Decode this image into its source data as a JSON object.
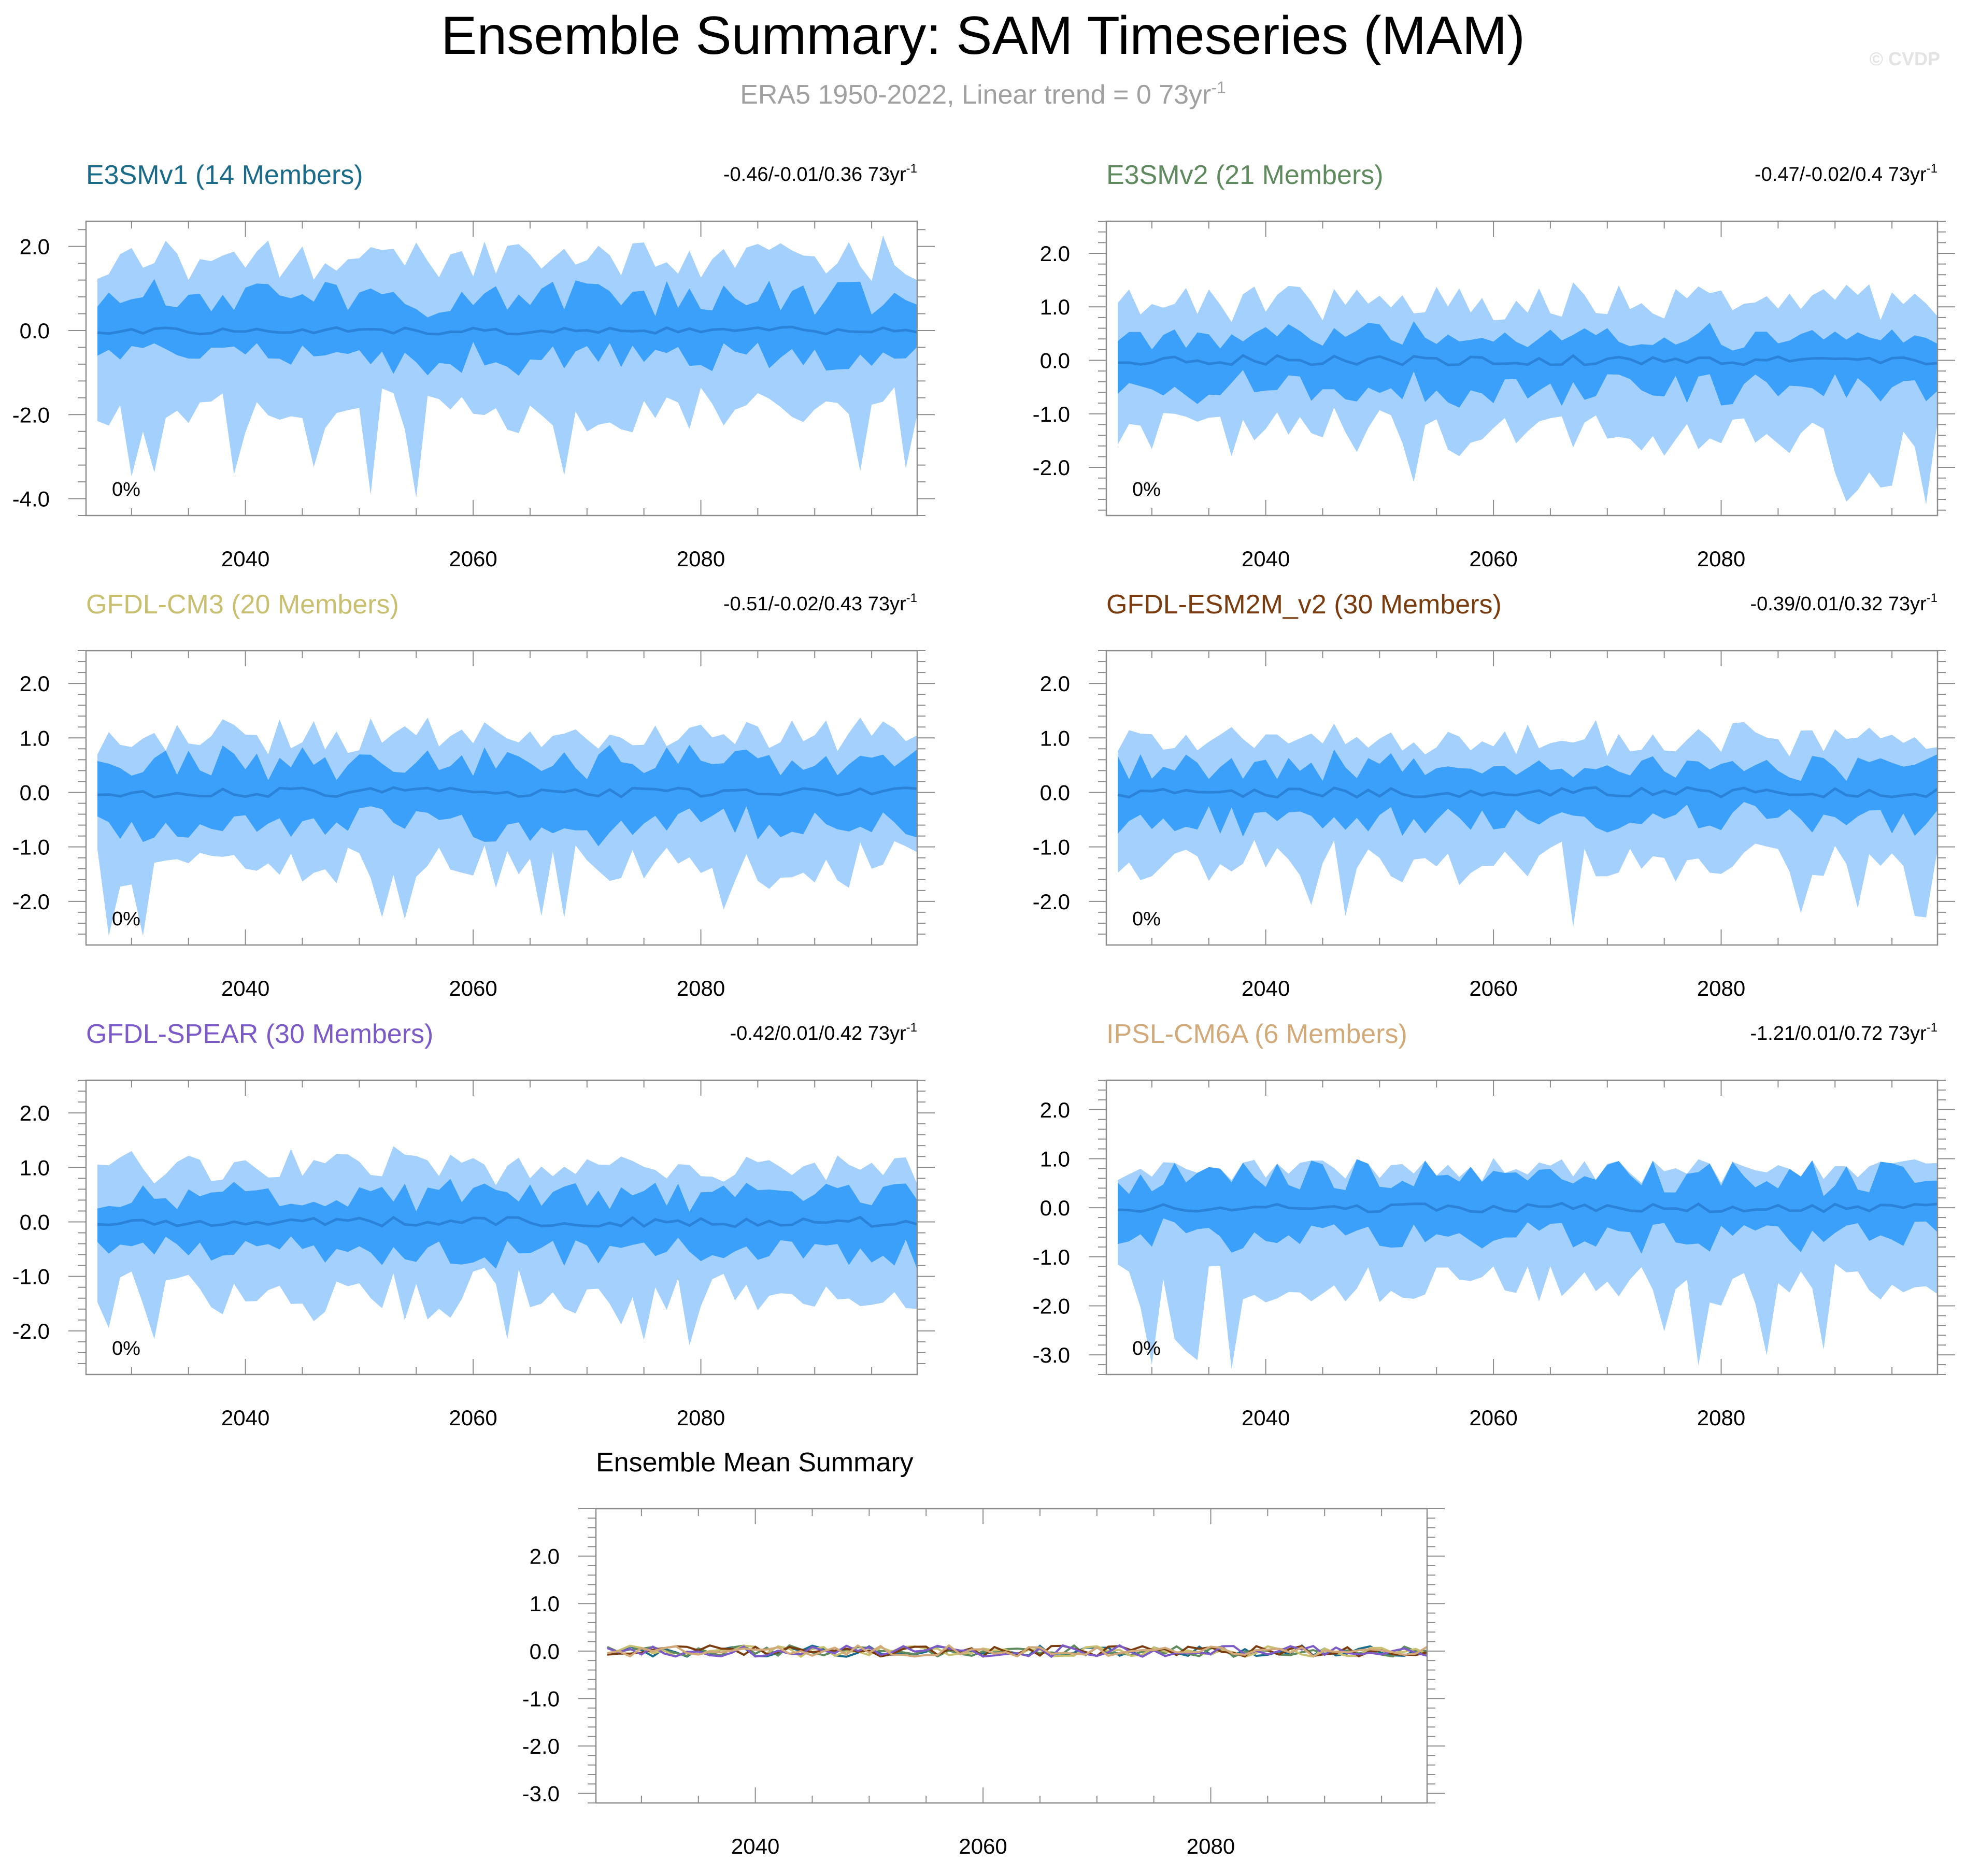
{
  "title": "Ensemble Summary: SAM Timeseries (MAM)",
  "subtitle": "ERA5 1950-2022, Linear trend = 0 73yr",
  "subtitle_sup": "-1",
  "watermark": "© CVDP",
  "bottom_title": "Ensemble Mean Summary",
  "colors": {
    "outer_band": "#a3d0fc",
    "inner_band": "#3aa0fa",
    "mean_line": "#2b83d9",
    "frame": "#8c8c8c",
    "title": "#000000",
    "subtitle": "#a0a0a0",
    "watermark": "#e3e3e3"
  },
  "chart_data": [
    {
      "type": "area",
      "name": "E3SMv1 (14 Members)",
      "color": "#1a6a8a",
      "trend_text": "-0.46/-0.01/0.36 73yr",
      "sup": "-1",
      "percent": "0%",
      "xlim": [
        2026,
        2099
      ],
      "ylim": [
        -4.4,
        2.6
      ],
      "yticks": [
        2.0,
        0.0,
        -2.0,
        -4.0
      ],
      "yticklabels": [
        "2.0",
        "0.0",
        "-2.0",
        "-4.0"
      ],
      "xticks": [
        2040,
        2060,
        2080
      ],
      "xticklabels": [
        "2040",
        "2060",
        "2080"
      ],
      "outer_hi": 2.0,
      "inner_hi": 1.1,
      "inner_lo": -0.9,
      "outer_lo": -2.2,
      "outer_min": -4.2,
      "seed": 11
    },
    {
      "type": "area",
      "name": "E3SMv2 (21 Members)",
      "color": "#5e8a5e",
      "trend_text": "-0.47/-0.02/0.4 73yr",
      "sup": "-1",
      "percent": "0%",
      "xlim": [
        2026,
        2099
      ],
      "ylim": [
        -2.9,
        2.6
      ],
      "yticks": [
        2.0,
        1.0,
        0.0,
        -1.0,
        -2.0
      ],
      "yticklabels": [
        "2.0",
        "1.0",
        "0.0",
        "-1.0",
        "-2.0"
      ],
      "xticks": [
        2040,
        2060,
        2080
      ],
      "xticklabels": [
        "2040",
        "2060",
        "2080"
      ],
      "outer_hi": 1.3,
      "inner_hi": 0.65,
      "inner_lo": -0.75,
      "outer_lo": -1.6,
      "outer_min": -2.7,
      "seed": 23
    },
    {
      "type": "area",
      "name": "GFDL-CM3 (20 Members)",
      "color": "#c8c070",
      "trend_text": "-0.51/-0.02/0.43 73yr",
      "sup": "-1",
      "percent": "0%",
      "xlim": [
        2026,
        2099
      ],
      "ylim": [
        -2.8,
        2.6
      ],
      "yticks": [
        2.0,
        1.0,
        0.0,
        -1.0,
        -2.0
      ],
      "yticklabels": [
        "2.0",
        "1.0",
        "0.0",
        "-1.0",
        "-2.0"
      ],
      "xticks": [
        2040,
        2060,
        2080
      ],
      "xticklabels": [
        "2040",
        "2060",
        "2080"
      ],
      "outer_hi": 1.2,
      "inner_hi": 0.75,
      "inner_lo": -0.85,
      "outer_lo": -1.6,
      "outer_min": -2.8,
      "seed": 37
    },
    {
      "type": "area",
      "name": "GFDL-ESM2M_v2 (30 Members)",
      "color": "#7a3c0e",
      "trend_text": "-0.39/0.01/0.32 73yr",
      "sup": "-1",
      "percent": "0%",
      "xlim": [
        2026,
        2099
      ],
      "ylim": [
        -2.8,
        2.6
      ],
      "yticks": [
        2.0,
        1.0,
        0.0,
        -1.0,
        -2.0
      ],
      "yticklabels": [
        "2.0",
        "1.0",
        "0.0",
        "-1.0",
        "-2.0"
      ],
      "xticks": [
        2040,
        2060,
        2080
      ],
      "xticklabels": [
        "2040",
        "2060",
        "2080"
      ],
      "outer_hi": 1.15,
      "inner_hi": 0.65,
      "inner_lo": -0.7,
      "outer_lo": -1.5,
      "outer_min": -2.6,
      "seed": 41
    },
    {
      "type": "area",
      "name": "GFDL-SPEAR (30 Members)",
      "color": "#7b5ac8",
      "trend_text": "-0.42/0.01/0.42 73yr",
      "sup": "-1",
      "percent": "0%",
      "xlim": [
        2026,
        2099
      ],
      "ylim": [
        -2.8,
        2.6
      ],
      "yticks": [
        2.0,
        1.0,
        0.0,
        -1.0,
        -2.0
      ],
      "yticklabels": [
        "2.0",
        "1.0",
        "0.0",
        "-1.0",
        "-2.0"
      ],
      "xticks": [
        2040,
        2060,
        2080
      ],
      "xticklabels": [
        "2040",
        "2060",
        "2080"
      ],
      "outer_hi": 1.2,
      "inner_hi": 0.7,
      "inner_lo": -0.75,
      "outer_lo": -1.5,
      "outer_min": -2.3,
      "seed": 53
    },
    {
      "type": "area",
      "name": "IPSL-CM6A (6 Members)",
      "color": "#d2aa7a",
      "trend_text": "-1.21/0.01/0.72 73yr",
      "sup": "-1",
      "percent": "0%",
      "xlim": [
        2026,
        2099
      ],
      "ylim": [
        -3.4,
        2.6
      ],
      "yticks": [
        2.0,
        1.0,
        0.0,
        -1.0,
        -2.0,
        -3.0
      ],
      "yticklabels": [
        "2.0",
        "1.0",
        "0.0",
        "-1.0",
        "-2.0",
        "-3.0"
      ],
      "xticks": [
        2040,
        2060,
        2080
      ],
      "xticklabels": [
        "2040",
        "2060",
        "2080"
      ],
      "outer_hi": 0.9,
      "inner_hi": 0.9,
      "inner_lo": -0.8,
      "outer_lo": -1.8,
      "outer_min": -3.3,
      "seed": 67
    },
    {
      "type": "line",
      "name": "Ensemble Mean Summary",
      "xlim": [
        2026,
        2099
      ],
      "ylim": [
        -3.2,
        3.0
      ],
      "yticks": [
        2.0,
        1.0,
        0.0,
        -1.0,
        -2.0,
        -3.0
      ],
      "yticklabels": [
        "2.0",
        "1.0",
        "0.0",
        "-1.0",
        "-2.0",
        "-3.0"
      ],
      "xticks": [
        2040,
        2060,
        2080
      ],
      "xticklabels": [
        "2040",
        "2060",
        "2080"
      ],
      "series_colors": [
        "#1a6a8a",
        "#5e8a5e",
        "#c8c070",
        "#7a3c0e",
        "#7b5ac8",
        "#d2aa7a"
      ],
      "amplitude": 0.12,
      "seed": 79
    }
  ]
}
